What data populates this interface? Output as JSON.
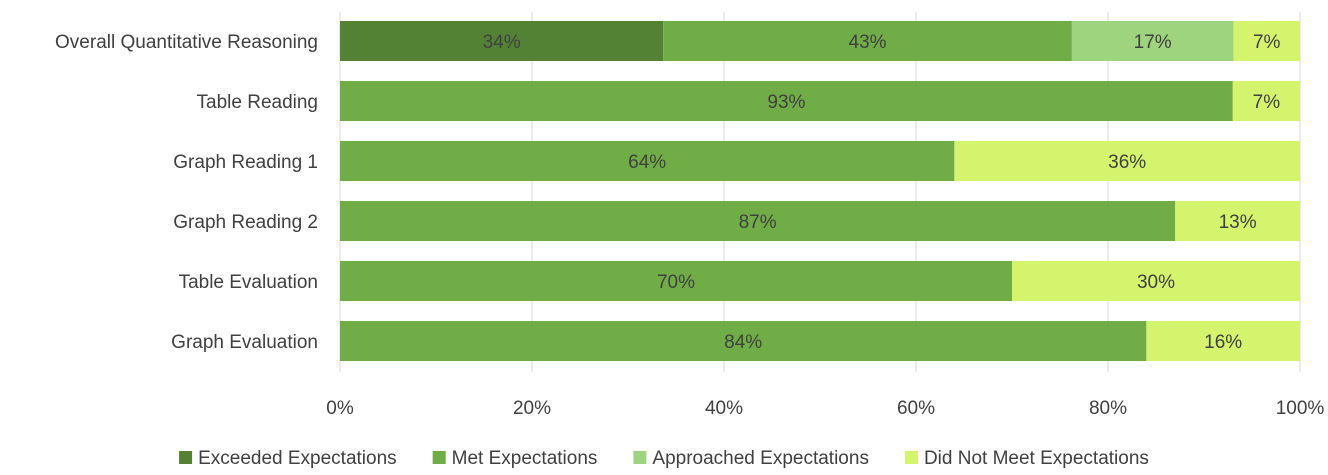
{
  "chart_data": {
    "type": "bar",
    "orientation": "horizontal",
    "stacked": "percent",
    "categories": [
      "Overall Quantitative Reasoning",
      "Table Reading",
      "Graph Reading 1",
      "Graph Reading 2",
      "Table Evaluation",
      "Graph Evaluation"
    ],
    "series": [
      {
        "name": "Exceeded Expectations",
        "color": "#548235",
        "values": [
          34,
          0,
          0,
          0,
          0,
          0
        ]
      },
      {
        "name": "Met Expectations",
        "color": "#70ad47",
        "values": [
          43,
          93,
          64,
          87,
          70,
          84
        ]
      },
      {
        "name": "Approached Expectations",
        "color": "#9fd47f",
        "values": [
          17,
          0,
          0,
          0,
          0,
          0
        ]
      },
      {
        "name": "Did Not Meet Expectations",
        "color": "#d4f46d",
        "values": [
          7,
          7,
          36,
          13,
          30,
          16
        ]
      }
    ],
    "xlim": [
      0,
      100
    ],
    "x_ticks": [
      "0%",
      "20%",
      "40%",
      "60%",
      "80%",
      "100%"
    ],
    "grid": true,
    "legend_position": "bottom",
    "title": "",
    "xlabel": "",
    "ylabel": ""
  }
}
